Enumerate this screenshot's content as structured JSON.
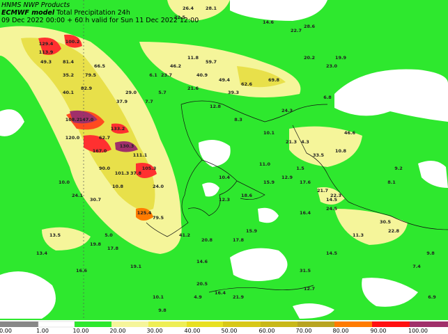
{
  "header": {
    "line1": "HNMS NWP Products",
    "model": "ECMWF model",
    "product": "Total Precipitation 24h",
    "valid": "09 Dec 2022 00:00 + 60 h valid for Sun 11 Dec 2022 12:00"
  },
  "map": {
    "labels": [
      "26.4",
      "28.1",
      "22.5",
      "14.6",
      "28.6",
      "22.7",
      "100.2",
      "129.4",
      "113.9",
      "49.3",
      "81.4",
      "66.5",
      "11.8",
      "59.7",
      "20.2",
      "19.9",
      "23.0",
      "46.2",
      "35.2",
      "79.5",
      "6.1",
      "23.7",
      "40.9",
      "49.4",
      "69.8",
      "62.6",
      "82.9",
      "21.6",
      "39.3",
      "29.0",
      "5.7",
      "40.1",
      "6.8",
      "37.9",
      "7.7",
      "12.8",
      "24.3",
      "108.2",
      "147.0",
      "8.3",
      "133.2",
      "10.1",
      "46.6",
      "120.0",
      "62.7",
      "21.3",
      "4.3",
      "130.3",
      "167.0",
      "10.8",
      "111.1",
      "33.5",
      "11.0",
      "90.0",
      "105.3",
      "9.2",
      "1.5",
      "101.3",
      "37.8",
      "10.4",
      "12.9",
      "10.0",
      "10.8",
      "17.6",
      "15.9",
      "24.0",
      "8.1",
      "21.7",
      "24.1",
      "18.6",
      "22.3",
      "30.7",
      "12.3",
      "14.5",
      "16.4",
      "24.5",
      "125.4",
      "79.5",
      "30.5",
      "22.8",
      "13.5",
      "5.0",
      "15.9",
      "11.3",
      "41.2",
      "20.8",
      "17.8",
      "19.8",
      "17.8",
      "13.4",
      "14.5",
      "14.6",
      "19.1",
      "16.6",
      "31.5",
      "9.8",
      "7.4",
      "20.5",
      "10.1",
      "12.7",
      "16.4",
      "21.9",
      "4.9",
      "9.8",
      "6.9"
    ]
  },
  "colorbar": {
    "labels": [
      "0.00",
      "1.00",
      "10.00",
      "20.00",
      "30.00",
      "40.00",
      "50.00",
      "60.00",
      "70.00",
      "80.00",
      "90.00",
      "100.00"
    ]
  }
}
